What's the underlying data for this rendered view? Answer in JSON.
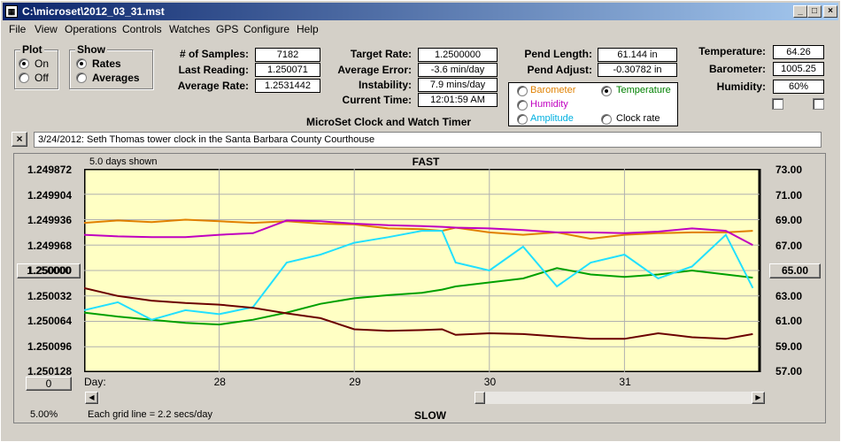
{
  "window": {
    "title": "C:\\microset\\2012_03_31.mst",
    "icon": "app-icon",
    "min": "_",
    "max": "□",
    "close": "×"
  },
  "menu": [
    "File",
    "View",
    "Operations",
    "Controls",
    "Watches",
    "GPS",
    "Configure",
    "Help"
  ],
  "plot_group": {
    "caption": "Plot",
    "on": "On",
    "off": "Off",
    "selected": "On"
  },
  "show_group": {
    "caption": "Show",
    "rates": "Rates",
    "averages": "Averages",
    "selected": "Rates"
  },
  "stats": {
    "samples_label": "# of Samples:",
    "samples": "7182",
    "last_reading_label": "Last Reading:",
    "last_reading": "1.250071",
    "avg_rate_label": "Average Rate:",
    "avg_rate": "1.2531442"
  },
  "target": {
    "target_rate_label": "Target Rate:",
    "target_rate": "1.2500000",
    "avg_error_label": "Average Error:",
    "avg_error": "-3.6 min/day",
    "instability_label": "Instability:",
    "instability": "7.9 mins/day",
    "current_time_label": "Current Time:",
    "current_time": "12:01:59 AM",
    "caption": "MicroSet Clock and Watch Timer"
  },
  "pendulum": {
    "length_label": "Pend Length:",
    "length": "61.144 in",
    "adjust_label": "Pend Adjust:",
    "adjust": "-0.30782 in"
  },
  "sensor_select": {
    "options": [
      {
        "label": "Barometer",
        "color": "#e08000",
        "selected": false
      },
      {
        "label": "Temperature",
        "color": "#008000",
        "selected": true
      },
      {
        "label": "Humidity",
        "color": "#c000c0",
        "selected": false
      },
      {
        "label": "Amplitude",
        "color": "#00b0e0",
        "selected": false
      },
      {
        "label": "Clock rate",
        "color": "#000000",
        "selected": false
      }
    ]
  },
  "environment": {
    "temp_label": "Temperature:",
    "temp": "64.26",
    "baro_label": "Barometer:",
    "baro": "1005.25",
    "hum_label": "Humidity:",
    "hum": "60%"
  },
  "note": {
    "close": "×",
    "text": "3/24/2012: Seth Thomas tower clock in the Santa Barbara County Courthouse"
  },
  "graph": {
    "days_shown": "5.0 days shown",
    "fast": "FAST",
    "slow": "SLOW",
    "left_button": "1.250000",
    "right_button": "65.00",
    "bottom_button": "0",
    "percent": "5.00%",
    "grid_note": "Each grid line = 2.2 secs/day",
    "day_label": "Day:",
    "left_ticks": [
      "1.249872",
      "1.249904",
      "1.249936",
      "1.249968",
      "1.250000",
      "1.250032",
      "1.250064",
      "1.250096",
      "1.250128"
    ],
    "right_ticks": [
      "73.00",
      "71.00",
      "69.00",
      "67.00",
      "65.00",
      "63.00",
      "61.00",
      "59.00",
      "57.00"
    ],
    "day_ticks": [
      "28",
      "29",
      "30",
      "31"
    ]
  },
  "chart_data": {
    "type": "line",
    "xlabel": "Day:",
    "x_days": [
      27.0,
      27.25,
      27.5,
      27.75,
      28.0,
      28.25,
      28.5,
      28.75,
      29.0,
      29.25,
      29.5,
      29.65,
      29.75,
      30.0,
      30.25,
      30.5,
      30.75,
      31.0,
      31.25,
      31.5,
      31.75,
      31.95
    ],
    "xlim": [
      27.0,
      32.0
    ],
    "left_ylim": [
      1.250128,
      1.249872
    ],
    "right_ylim": [
      57.0,
      73.0
    ],
    "series": [
      {
        "name": "Barometer",
        "color": "#e08000",
        "axis": "left",
        "values": [
          1.24994,
          1.249937,
          1.249939,
          1.249936,
          1.249938,
          1.24994,
          1.249938,
          1.249941,
          1.249942,
          1.249947,
          1.249948,
          1.24995,
          1.249946,
          1.249952,
          1.249955,
          1.249952,
          1.24996,
          1.249955,
          1.249953,
          1.249952,
          1.249952,
          1.24995
        ]
      },
      {
        "name": "Humidity",
        "color": "#c000c0",
        "axis": "left",
        "values": [
          1.249955,
          1.249957,
          1.249958,
          1.249958,
          1.249955,
          1.249953,
          1.249937,
          1.249938,
          1.249941,
          1.249943,
          1.249944,
          1.249945,
          1.249946,
          1.249947,
          1.249949,
          1.249952,
          1.249952,
          1.249953,
          1.249951,
          1.249947,
          1.24995,
          1.249968
        ]
      },
      {
        "name": "Temperature",
        "color": "#00a000",
        "axis": "left",
        "values": [
          1.250053,
          1.250058,
          1.250062,
          1.250066,
          1.250068,
          1.250062,
          1.250053,
          1.250042,
          1.250035,
          1.250031,
          1.250028,
          1.250024,
          1.25002,
          1.250015,
          1.25001,
          1.249997,
          1.250005,
          1.250008,
          1.250005,
          1.25,
          1.250005,
          1.250009
        ]
      },
      {
        "name": "Amplitude",
        "color": "#22e0ff",
        "axis": "left",
        "values": [
          1.25005,
          1.25004,
          1.250062,
          1.25005,
          1.250055,
          1.250046,
          1.24999,
          1.24998,
          1.249965,
          1.249958,
          1.24995,
          1.24995,
          1.24999,
          1.25,
          1.24997,
          1.25002,
          1.24999,
          1.24998,
          1.25001,
          1.249995,
          1.249955,
          1.250022
        ]
      },
      {
        "name": "Clock rate",
        "color": "#6b0000",
        "axis": "left",
        "values": [
          1.250022,
          1.250032,
          1.250038,
          1.250041,
          1.250043,
          1.250047,
          1.250054,
          1.25006,
          1.250074,
          1.250076,
          1.250075,
          1.250074,
          1.250081,
          1.250079,
          1.25008,
          1.250083,
          1.250086,
          1.250086,
          1.250079,
          1.250084,
          1.250086,
          1.25008
        ]
      }
    ]
  }
}
